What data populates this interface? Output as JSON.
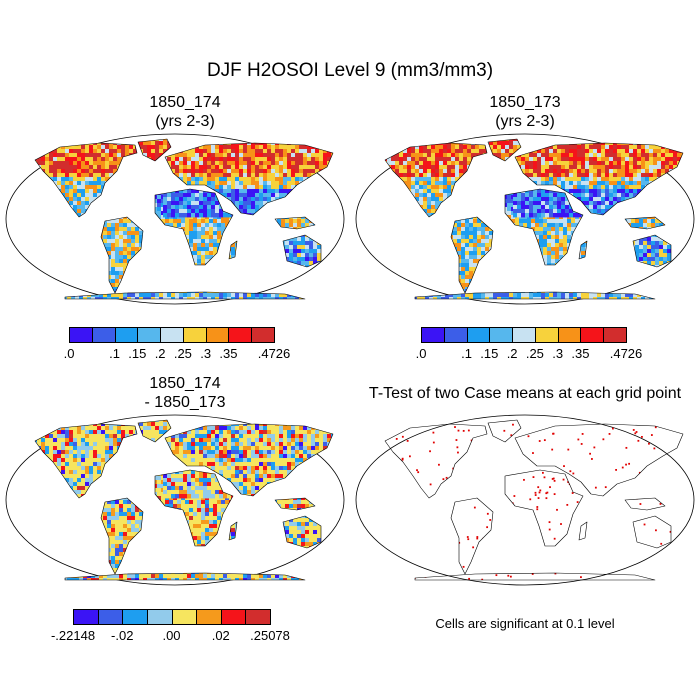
{
  "figure": {
    "title": "DJF H2OSOI Level 9 (mm3/mm3)"
  },
  "panels": {
    "p1": {
      "title_line1": "1850_174",
      "title_line2": "(yrs 2-3)"
    },
    "p2": {
      "title_line1": "1850_173",
      "title_line2": "(yrs 2-3)"
    },
    "p3": {
      "title_line1": "1850_174",
      "title_line2": "- 1850_173"
    },
    "p4": {
      "title": "T-Test of two Case means at each grid point",
      "note": "Cells are significant at 0.1 level"
    }
  },
  "colorbars": {
    "abs": {
      "colors": [
        "#3b14f5",
        "#3c5ee8",
        "#1e9ef0",
        "#56b7ed",
        "#c8e2f2",
        "#f7d23c",
        "#f79218",
        "#f5141a",
        "#d22d2d"
      ],
      "ticks": [
        ".0",
        ".1",
        ".15",
        ".2",
        ".25",
        ".3",
        ".35",
        ".4726"
      ]
    },
    "diff": {
      "colors": [
        "#3b14f5",
        "#3c5ee8",
        "#1e9ef0",
        "#92cbeb",
        "#f6e55f",
        "#f59a1c",
        "#f5141a",
        "#d22d2d"
      ],
      "ticks": [
        "-.22148",
        "-.02",
        ".00",
        ".02",
        ".25078"
      ]
    }
  },
  "colors": {
    "land_outline": "#000000",
    "significance": "#e00000"
  }
}
